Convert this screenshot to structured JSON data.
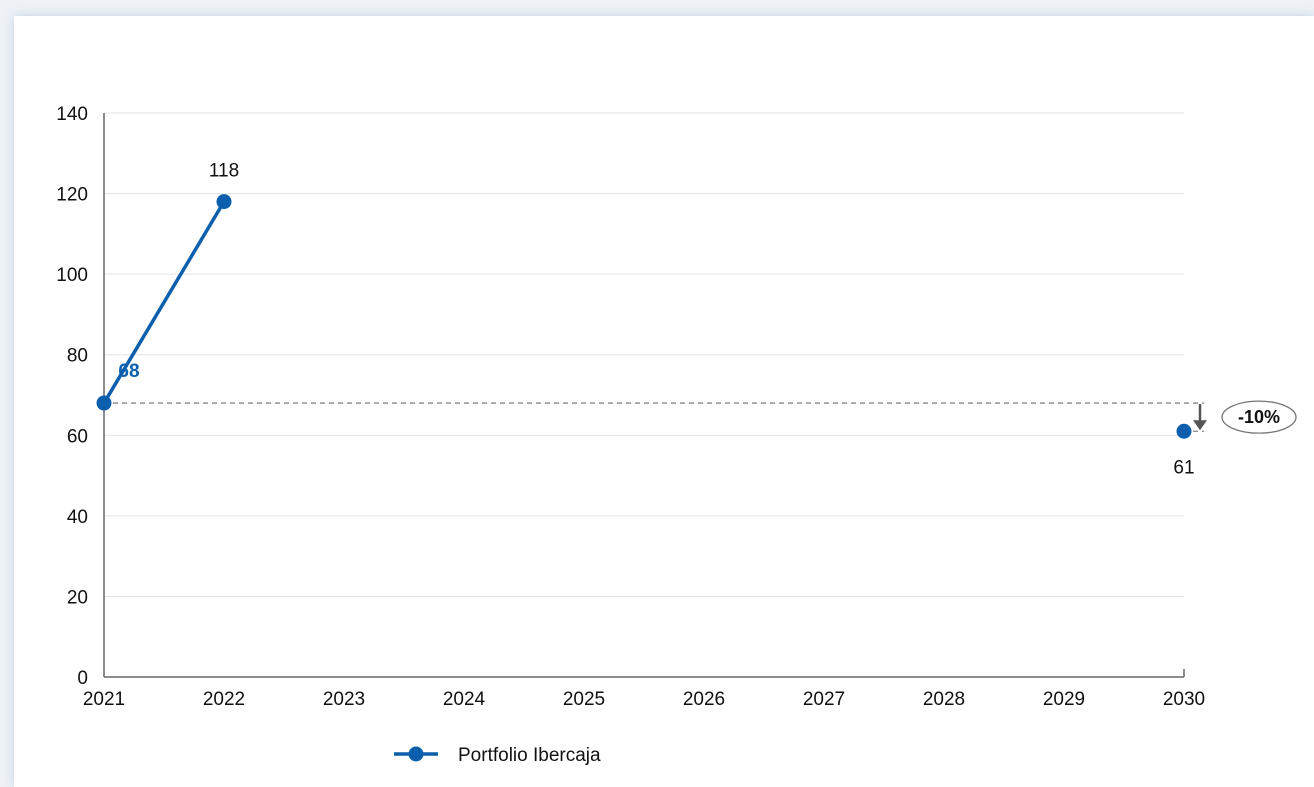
{
  "chart_data": {
    "type": "line",
    "title": "",
    "xlabel": "",
    "ylabel": "",
    "x": [
      2021,
      2022,
      2023,
      2024,
      2025,
      2026,
      2027,
      2028,
      2029,
      2030
    ],
    "ylim": [
      0,
      140
    ],
    "yticks": [
      0,
      20,
      40,
      60,
      80,
      100,
      120,
      140
    ],
    "grid": true,
    "legend_position": "bottom",
    "series": [
      {
        "name": "Portfolio Ibercaja",
        "color": "#0b5fad",
        "points": [
          {
            "x": 2021,
            "y": 68
          },
          {
            "x": 2022,
            "y": 118
          }
        ]
      },
      {
        "name": "",
        "color": "#0b5fad",
        "points": [
          {
            "x": 2030,
            "y": 61
          }
        ]
      }
    ],
    "data_labels": [
      {
        "x": 2021,
        "y": 68,
        "text": "68",
        "bold": true
      },
      {
        "x": 2022,
        "y": 118,
        "text": "118",
        "bold": false
      },
      {
        "x": 2030,
        "y": 61,
        "text": "61",
        "bold": false
      }
    ],
    "reference_line": {
      "y": 68,
      "style": "dashed"
    },
    "annotation": {
      "text": "-10%",
      "from": 68,
      "to": 61
    }
  }
}
